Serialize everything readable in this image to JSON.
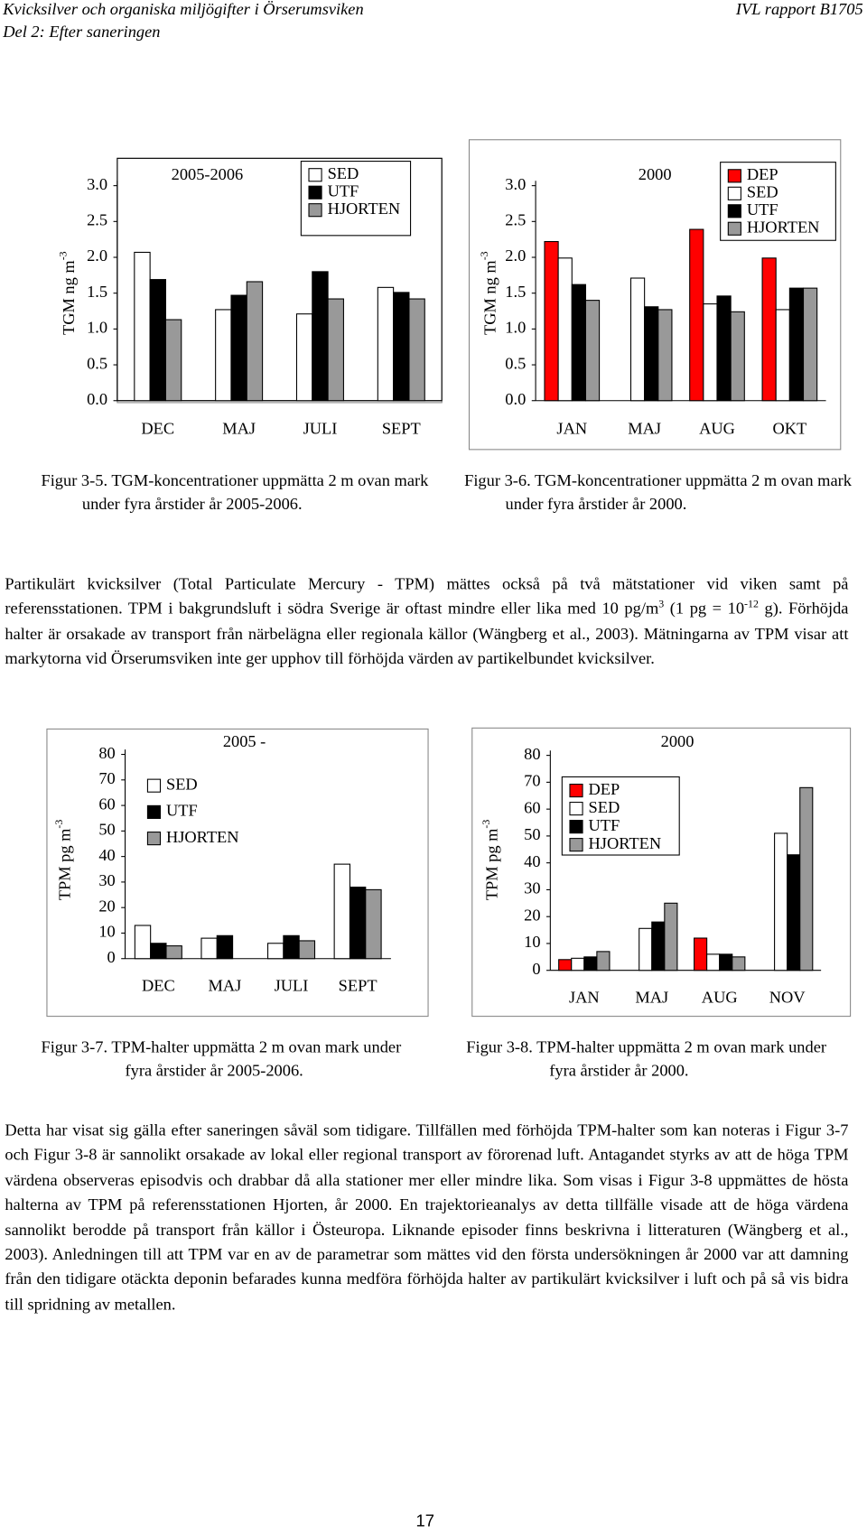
{
  "header": {
    "title": "Kvicksilver och organiska miljögifter i Örserumsviken",
    "subtitle": "Del 2: Efter saneringen",
    "report": "IVL rapport B1705"
  },
  "captions": [
    "Figur 3-5. TGM-koncentrationer uppmätta 2 m ovan mark under fyra årstider år 2005-2006.",
    "Figur 3-6. TGM-koncentrationer uppmätta 2 m ovan mark under fyra årstider år 2000.",
    "Figur 3-7. TPM-halter uppmätta 2 m ovan mark under fyra årstider år 2005-2006.",
    "Figur 3-8. TPM-halter uppmätta 2 m ovan mark under fyra årstider år 2000."
  ],
  "paragraphs": [
    [
      "Partikulärt kvicksilver (Total Particulate Mercury - TPM) mättes också på två mätstationer vid viken samt på referensstationen. TPM i bakgrundsluft i södra Sverige är oftast mindre eller lika med 10 pg/m",
      "3",
      " (1 pg = 10",
      "-12",
      " g). Förhöjda halter är orsakade av transport från närbelägna eller regionala källor (Wängberg et al., 2003). Mätningarna av TPM visar att markytorna vid Örserumsviken inte ger upphov till förhöjda värden av partikelbundet kvicksilver."
    ],
    [
      "Detta har visat sig gälla efter saneringen såväl som tidigare. Tillfällen med förhöjda TPM-halter som kan noteras i Figur 3-7 och Figur 3-8 är sannolikt orsakade av lokal eller regional transport av förorenad luft. Antagandet styrks av att de höga TPM värdena observeras episodvis och drabbar då alla stationer mer eller mindre lika. Som visas i Figur 3-8 uppmättes de hösta halterna av TPM på referensstationen Hjorten, år 2000. En trajektorieanalys av detta tillfälle visade att de höga värdena sannolikt berodde på transport från källor i Östeuropa. Liknande episoder finns beskrivna i litteraturen (Wängberg et al., 2003). Anledningen till att TPM var en av de parametrar som mättes vid den första undersökningen år 2000 var att damning från den tidigare otäckta deponin befarades kunna medföra förhöjda halter av partikulärt kvicksilver i luft och på så vis bidra till spridning av metallen."
    ]
  ],
  "page_number": "17",
  "chart_data": [
    {
      "type": "bar",
      "title": "2005-2006",
      "ylabel": "TGM  ng m",
      "ylabel_superscript": "-3",
      "categories": [
        "DEC",
        "MAJ",
        "JULI",
        "SEPT"
      ],
      "series": [
        {
          "name": "SED",
          "color": "#ffffff",
          "values": [
            2.07,
            1.27,
            1.21,
            1.58
          ]
        },
        {
          "name": "UTF",
          "color": "#000000",
          "values": [
            1.69,
            1.47,
            1.8,
            1.51
          ]
        },
        {
          "name": "HJORTEN",
          "color": "#999999",
          "values": [
            1.13,
            1.66,
            1.42,
            1.42
          ]
        }
      ],
      "ylim": [
        0,
        3
      ],
      "yticks": [
        {
          "value": 0,
          "label": "0.0"
        },
        0.5,
        {
          "value": 1,
          "label": "1.0"
        },
        1.5,
        {
          "value": 2,
          "label": "2.0"
        },
        2.5,
        {
          "value": 3,
          "label": "3.0"
        }
      ],
      "legend": "upper right",
      "grid": false
    },
    {
      "type": "bar",
      "title": "2000",
      "ylabel": "TGM  ng m",
      "ylabel_superscript": "-3",
      "categories": [
        "JAN",
        "MAJ",
        "AUG",
        "OKT"
      ],
      "series": [
        {
          "name": "DEP",
          "color": "#ff0000",
          "values": [
            2.22,
            null,
            2.39,
            1.99
          ]
        },
        {
          "name": "SED",
          "color": "#ffffff",
          "values": [
            1.99,
            1.71,
            1.35,
            1.27
          ]
        },
        {
          "name": "UTF",
          "color": "#000000",
          "values": [
            1.62,
            1.31,
            1.46,
            1.57
          ]
        },
        {
          "name": "HJORTEN",
          "color": "#999999",
          "values": [
            1.4,
            1.27,
            1.24,
            1.57
          ]
        }
      ],
      "ylim": [
        0,
        3
      ],
      "yticks": [
        {
          "value": 0,
          "label": "0.0"
        },
        0.5,
        {
          "value": 1,
          "label": "1.0"
        },
        1.5,
        {
          "value": 2,
          "label": "2.0"
        },
        2.5,
        {
          "value": 3,
          "label": "3.0"
        }
      ],
      "legend": "upper right",
      "grid": false
    },
    {
      "type": "bar",
      "title": "2005 -",
      "ylabel": "TPM  pg m",
      "ylabel_superscript": "-3",
      "categories": [
        "DEC",
        "MAJ",
        "JULI",
        "SEPT"
      ],
      "series": [
        {
          "name": "SED",
          "color": "#ffffff",
          "values": [
            13,
            8,
            6,
            37
          ]
        },
        {
          "name": "UTF",
          "color": "#000000",
          "values": [
            6,
            9,
            9,
            28
          ]
        },
        {
          "name": "HJORTEN",
          "color": "#999999",
          "values": [
            5,
            null,
            7,
            27
          ]
        }
      ],
      "ylim": [
        0,
        80
      ],
      "yticks": [
        0,
        10,
        20,
        30,
        40,
        50,
        60,
        70,
        80
      ],
      "legend": "upper left",
      "grid": false
    },
    {
      "type": "bar",
      "title": "2000",
      "ylabel": "TPM  pg m",
      "ylabel_superscript": "-3",
      "categories": [
        "JAN",
        "MAJ",
        "AUG",
        "NOV"
      ],
      "series": [
        {
          "name": "DEP",
          "color": "#ff0000",
          "values": [
            4,
            null,
            12,
            null
          ]
        },
        {
          "name": "SED",
          "color": "#ffffff",
          "values": [
            4.5,
            15.6,
            6,
            51
          ]
        },
        {
          "name": "UTF",
          "color": "#000000",
          "values": [
            5,
            18,
            6,
            43
          ]
        },
        {
          "name": "HJORTEN",
          "color": "#999999",
          "values": [
            7,
            25,
            5,
            68
          ]
        }
      ],
      "ylim": [
        0,
        80
      ],
      "yticks": [
        0,
        10,
        20,
        30,
        40,
        50,
        60,
        70,
        80
      ],
      "legend": "upper left",
      "grid": false
    }
  ]
}
